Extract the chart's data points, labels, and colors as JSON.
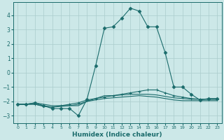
{
  "xlabel": "Humidex (Indice chaleur)",
  "ylabel": "",
  "bg_color": "#cce8e8",
  "line_color": "#1a6b6b",
  "grid_color": "#aacccc",
  "xlim": [
    -0.5,
    23.5
  ],
  "ylim": [
    -3.5,
    4.9
  ],
  "yticks": [
    -3,
    -2,
    -1,
    0,
    1,
    2,
    3,
    4
  ],
  "xticks": [
    0,
    1,
    2,
    3,
    4,
    5,
    6,
    7,
    8,
    9,
    10,
    11,
    12,
    13,
    14,
    15,
    16,
    17,
    18,
    19,
    20,
    21,
    22,
    23
  ],
  "series1": [
    [
      0,
      -2.2
    ],
    [
      1,
      -2.2
    ],
    [
      2,
      -2.1
    ],
    [
      3,
      -2.3
    ],
    [
      4,
      -2.5
    ],
    [
      5,
      -2.5
    ],
    [
      6,
      -2.5
    ],
    [
      7,
      -3.0
    ],
    [
      8,
      -1.85
    ],
    [
      9,
      0.5
    ],
    [
      10,
      3.1
    ],
    [
      11,
      3.2
    ],
    [
      12,
      3.8
    ],
    [
      13,
      4.5
    ],
    [
      14,
      4.3
    ],
    [
      15,
      3.2
    ],
    [
      16,
      3.2
    ],
    [
      17,
      1.4
    ],
    [
      18,
      -1.0
    ],
    [
      19,
      -1.0
    ],
    [
      20,
      -1.5
    ],
    [
      21,
      -1.9
    ],
    [
      22,
      -1.8
    ],
    [
      23,
      -1.8
    ]
  ],
  "series2": [
    [
      0,
      -2.2
    ],
    [
      1,
      -2.2
    ],
    [
      2,
      -2.2
    ],
    [
      3,
      -2.3
    ],
    [
      4,
      -2.4
    ],
    [
      5,
      -2.3
    ],
    [
      6,
      -2.2
    ],
    [
      7,
      -2.1
    ],
    [
      8,
      -1.9
    ],
    [
      9,
      -1.8
    ],
    [
      10,
      -1.7
    ],
    [
      11,
      -1.6
    ],
    [
      12,
      -1.5
    ],
    [
      13,
      -1.4
    ],
    [
      14,
      -1.3
    ],
    [
      15,
      -1.2
    ],
    [
      16,
      -1.2
    ],
    [
      17,
      -1.4
    ],
    [
      18,
      -1.6
    ],
    [
      19,
      -1.7
    ],
    [
      20,
      -1.8
    ],
    [
      21,
      -1.85
    ],
    [
      22,
      -1.85
    ],
    [
      23,
      -1.85
    ]
  ],
  "series3": [
    [
      0,
      -2.2
    ],
    [
      1,
      -2.2
    ],
    [
      2,
      -2.2
    ],
    [
      3,
      -2.35
    ],
    [
      4,
      -2.4
    ],
    [
      5,
      -2.35
    ],
    [
      6,
      -2.3
    ],
    [
      7,
      -2.2
    ],
    [
      8,
      -2.0
    ],
    [
      9,
      -1.9
    ],
    [
      10,
      -1.8
    ],
    [
      11,
      -1.75
    ],
    [
      12,
      -1.7
    ],
    [
      13,
      -1.65
    ],
    [
      14,
      -1.6
    ],
    [
      15,
      -1.65
    ],
    [
      16,
      -1.7
    ],
    [
      17,
      -1.8
    ],
    [
      18,
      -1.9
    ],
    [
      19,
      -1.95
    ],
    [
      20,
      -1.95
    ],
    [
      21,
      -1.95
    ],
    [
      22,
      -1.95
    ],
    [
      23,
      -1.95
    ]
  ],
  "series4": [
    [
      0,
      -2.2
    ],
    [
      1,
      -2.2
    ],
    [
      2,
      -2.1
    ],
    [
      3,
      -2.2
    ],
    [
      4,
      -2.3
    ],
    [
      5,
      -2.3
    ],
    [
      6,
      -2.3
    ],
    [
      7,
      -2.3
    ],
    [
      8,
      -2.0
    ],
    [
      9,
      -1.8
    ],
    [
      10,
      -1.6
    ],
    [
      11,
      -1.6
    ],
    [
      12,
      -1.55
    ],
    [
      13,
      -1.5
    ],
    [
      14,
      -1.5
    ],
    [
      15,
      -1.5
    ],
    [
      16,
      -1.55
    ],
    [
      17,
      -1.65
    ],
    [
      18,
      -1.75
    ],
    [
      19,
      -1.8
    ],
    [
      20,
      -1.85
    ],
    [
      21,
      -1.85
    ],
    [
      22,
      -1.85
    ],
    [
      23,
      -1.85
    ]
  ]
}
